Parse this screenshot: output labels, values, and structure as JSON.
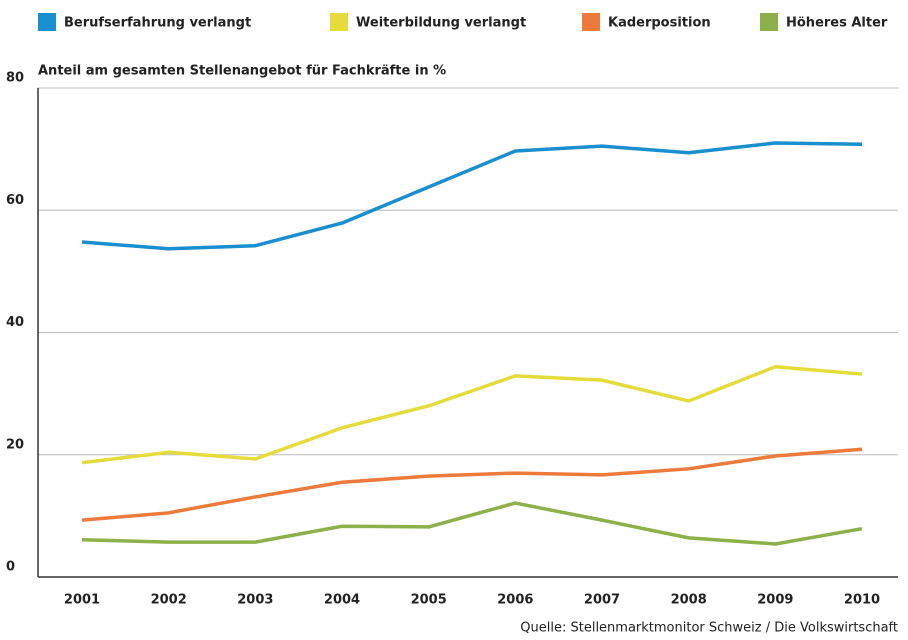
{
  "chart_data": {
    "type": "line",
    "y_axis_label": "Anteil am gesamten Stellenangebot für Fachkräfte in %",
    "source": "Quelle: Stellenmarktmonitor Schweiz / Die Volkswirtschaft",
    "categories": [
      "2001",
      "2002",
      "2003",
      "2004",
      "2005",
      "2006",
      "2007",
      "2008",
      "2009",
      "2010"
    ],
    "series": [
      {
        "name": "Berufserfahrung verlangt",
        "color": "#1a8fcf",
        "values": [
          54.8,
          53.7,
          54.2,
          57.9,
          63.8,
          69.7,
          70.5,
          69.4,
          71.0,
          70.8
        ]
      },
      {
        "name": "Weiterbildung verlangt",
        "color": "#e3dc3a",
        "values": [
          18.7,
          20.4,
          19.3,
          24.4,
          28.0,
          32.9,
          32.2,
          28.8,
          34.4,
          33.2
        ]
      },
      {
        "name": "Kaderposition",
        "color": "#ec7a3a",
        "values": [
          9.3,
          10.5,
          13.1,
          15.5,
          16.5,
          17.0,
          16.7,
          17.7,
          19.8,
          20.9
        ]
      },
      {
        "name": "Höheres Alter",
        "color": "#8db04a",
        "values": [
          6.1,
          5.7,
          5.7,
          8.3,
          8.2,
          12.1,
          9.3,
          6.4,
          5.4,
          7.9
        ]
      }
    ],
    "ylim": [
      0,
      80
    ],
    "yticks": [
      0,
      20,
      40,
      60,
      80
    ],
    "grid": true,
    "legend": "top"
  }
}
